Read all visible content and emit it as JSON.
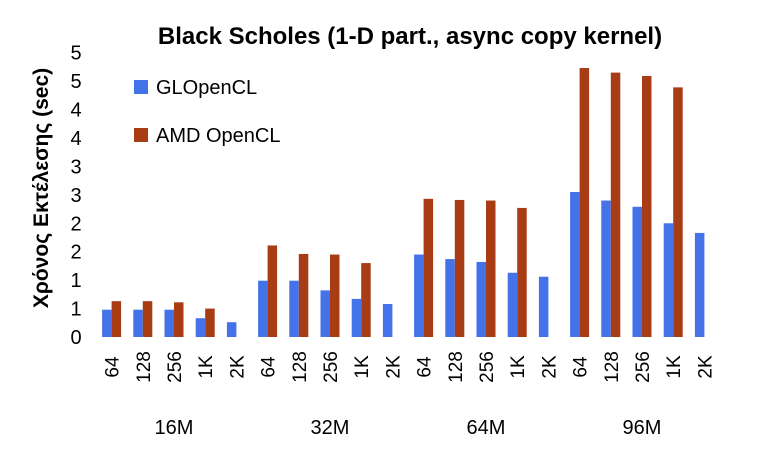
{
  "chart_data": {
    "type": "bar",
    "title": "Black Scholes (1-D part., async copy kernel)",
    "ylabel": "Χρόνος Εκτέλεσης (sec)",
    "xlabel": "",
    "ylim": [
      0,
      5.1
    ],
    "yticks": [
      0,
      0.5,
      1,
      1.5,
      2,
      2.5,
      3,
      3.5,
      4,
      4.5,
      5
    ],
    "ytick_labels": [
      "0",
      "1",
      "1",
      "2",
      "2",
      "3",
      "3",
      "4",
      "4",
      "5",
      "5"
    ],
    "grid": false,
    "legend_position": "top-left",
    "groups": [
      "16M",
      "32M",
      "64M",
      "96M"
    ],
    "categories": [
      "64",
      "128",
      "256",
      "1K",
      "2K"
    ],
    "series": [
      {
        "name": "GLOpenCL",
        "color": "#4472e8",
        "values": [
          [
            0.48,
            0.48,
            0.48,
            0.33,
            0.26
          ],
          [
            0.99,
            0.99,
            0.82,
            0.67,
            0.58
          ],
          [
            1.45,
            1.37,
            1.32,
            1.13,
            1.06
          ],
          [
            2.55,
            2.4,
            2.29,
            2.0,
            1.83
          ]
        ]
      },
      {
        "name": "AMD OpenCL",
        "color": "#a83c14",
        "values": [
          [
            0.63,
            0.63,
            0.61,
            0.5,
            null
          ],
          [
            1.61,
            1.46,
            1.45,
            1.3,
            null
          ],
          [
            2.43,
            2.41,
            2.4,
            2.27,
            null
          ],
          [
            4.73,
            4.65,
            4.59,
            4.39,
            null
          ]
        ]
      }
    ]
  }
}
